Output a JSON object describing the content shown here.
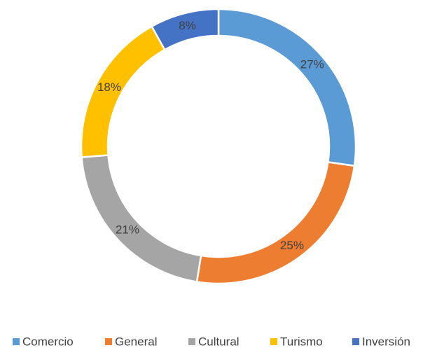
{
  "chart_data": {
    "type": "donut",
    "categories": [
      "Comercio",
      "General",
      "Cultural",
      "Turismo",
      "Inversión"
    ],
    "values": [
      27,
      25,
      21,
      18,
      8
    ],
    "value_labels": [
      "27%",
      "25%",
      "21%",
      "18%",
      "8%"
    ],
    "colors": [
      "#5b9bd5",
      "#ed7d31",
      "#a5a5a5",
      "#ffc000",
      "#4472c4"
    ],
    "legend": "bottom"
  }
}
